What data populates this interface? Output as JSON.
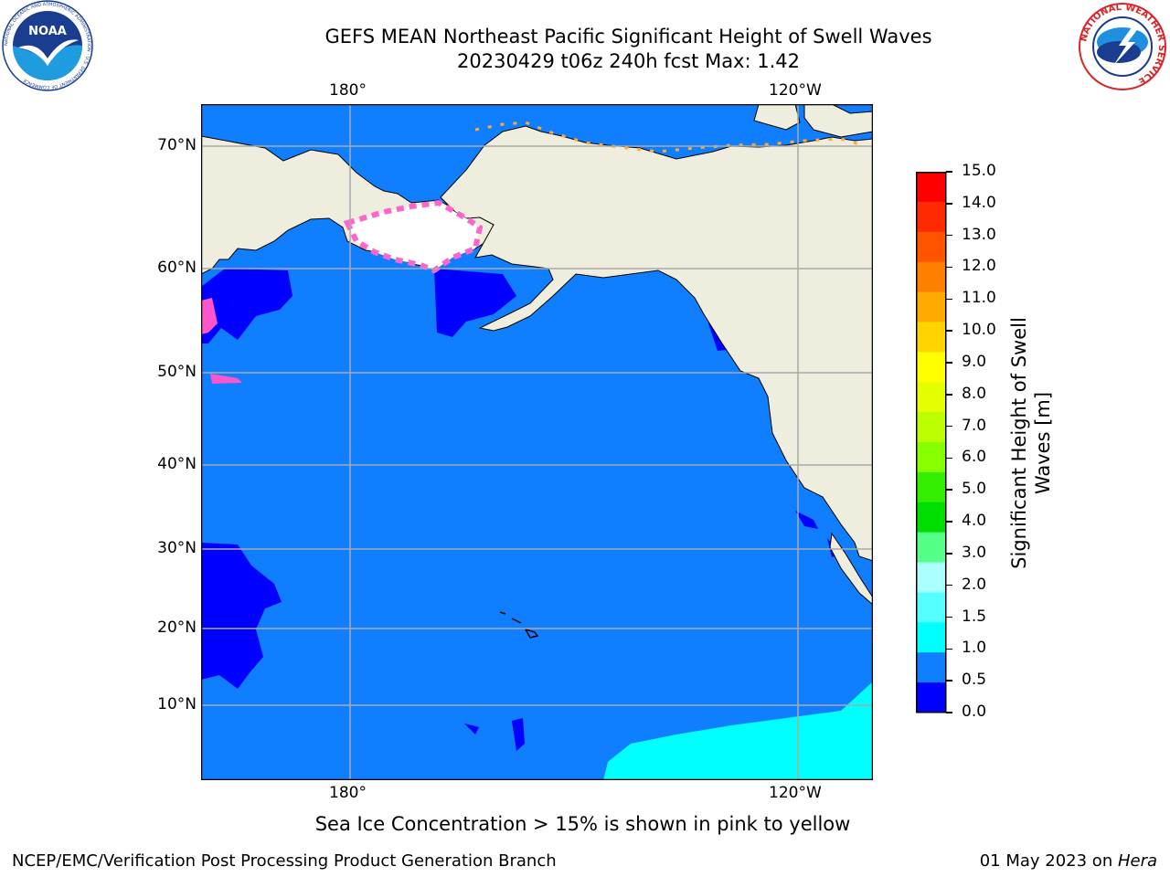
{
  "header": {
    "title_line1": "GEFS MEAN Northeast Pacific Significant Height of Swell Waves",
    "title_line2": "20230429 t06z 240h fcst   Max: 1.42"
  },
  "logos": {
    "left": {
      "icon": "noaa-logo",
      "text": "NOAA",
      "ring_text": "NATIONAL OCEANIC AND ATMOSPHERIC ADMINISTRATION · U.S. DEPARTMENT OF COMMERCE"
    },
    "right": {
      "icon": "nws-logo",
      "ring_text": "NATIONAL WEATHER SERVICE"
    }
  },
  "map": {
    "lon_top": [
      "180°",
      "120°W"
    ],
    "lon_bottom": [
      "180°",
      "120°W"
    ],
    "lat": [
      "70°N",
      "60°N",
      "50°N",
      "40°N",
      "30°N",
      "20°N",
      "10°N"
    ],
    "colors": {
      "ocean": "#0f7fff",
      "low": "#0000ff",
      "cyan": "#00ffff",
      "land": "#efedde",
      "grid": "#aaaaaa"
    }
  },
  "colorbar": {
    "ticks": [
      "15.0",
      "14.0",
      "13.0",
      "12.0",
      "11.0",
      "10.0",
      "9.0",
      "8.0",
      "7.0",
      "6.0",
      "5.0",
      "4.0",
      "3.0",
      "2.0",
      "1.5",
      "1.0",
      "0.5",
      "0.0"
    ],
    "colors_top_down": [
      "#ff0000",
      "#ff2a00",
      "#ff5500",
      "#ff8000",
      "#ffaa00",
      "#ffd400",
      "#ffff00",
      "#e6ff00",
      "#bbff00",
      "#88ff00",
      "#33ee00",
      "#00dd00",
      "#55ff88",
      "#aaffff",
      "#55ffff",
      "#00ffff",
      "#0f7fff",
      "#0000ff"
    ],
    "label": "Significant Height of Swell\nWaves [m]",
    "label_line1": "Significant Height of Swell",
    "label_line2": "Waves [m]"
  },
  "notes": {
    "ice": "Sea Ice Concentration > 15% is shown in pink to yellow"
  },
  "footer": {
    "left": "NCEP/EMC/Verification Post Processing Product Generation Branch",
    "date": "01 May 2023 on ",
    "machine": "Hera"
  }
}
